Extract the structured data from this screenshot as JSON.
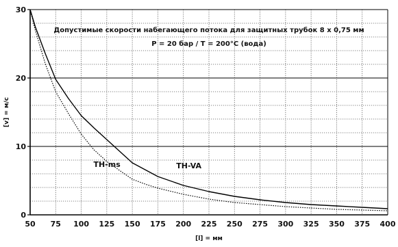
{
  "chart_data": {
    "type": "line",
    "title": "Допустимые скорости набегающего потока для защитных трубок 8 x 0,75 мм",
    "subtitle": "P = 20 бар  /  T = 200°C  (вода)",
    "xlabel": "[l] = мм",
    "ylabel": "[v] = м/с",
    "xlim": [
      50,
      400
    ],
    "ylim": [
      0,
      30
    ],
    "x_ticks": [
      50,
      75,
      100,
      125,
      150,
      175,
      200,
      225,
      250,
      275,
      300,
      325,
      350,
      375,
      400
    ],
    "y_ticks": [
      0,
      10,
      20,
      30
    ],
    "grid": true,
    "series": [
      {
        "name": "TH-VA",
        "style": "solid",
        "x": [
          50,
          55,
          65,
          75,
          87.5,
          100,
          112.5,
          125,
          137.5,
          150,
          162.5,
          175,
          200,
          225,
          250,
          275,
          300,
          325,
          350,
          375,
          400
        ],
        "y": [
          30,
          27.5,
          23.5,
          19.8,
          17,
          14.5,
          12.7,
          11,
          9.3,
          7.6,
          6.6,
          5.6,
          4.3,
          3.4,
          2.7,
          2.2,
          1.8,
          1.5,
          1.3,
          1.1,
          0.9
        ]
      },
      {
        "name": "TH-ms",
        "style": "dotted",
        "x": [
          50,
          55,
          65,
          75,
          87.5,
          100,
          112.5,
          125,
          137.5,
          150,
          162.5,
          175,
          200,
          225,
          250,
          275,
          300,
          325,
          350,
          375,
          400
        ],
        "y": [
          30,
          27,
          22,
          18,
          14.8,
          11.8,
          9.5,
          7.8,
          6.5,
          5.2,
          4.5,
          3.9,
          3,
          2.3,
          1.8,
          1.5,
          1.2,
          1,
          0.8,
          0.7,
          0.6
        ]
      }
    ],
    "series_label_positions": {
      "TH-ms": [
        112,
        7
      ],
      "TH-VA": [
        193,
        6.8
      ]
    },
    "colors": {
      "line": "#000000",
      "grid_dotted": "#555555",
      "grid_solid": "#000000"
    }
  }
}
